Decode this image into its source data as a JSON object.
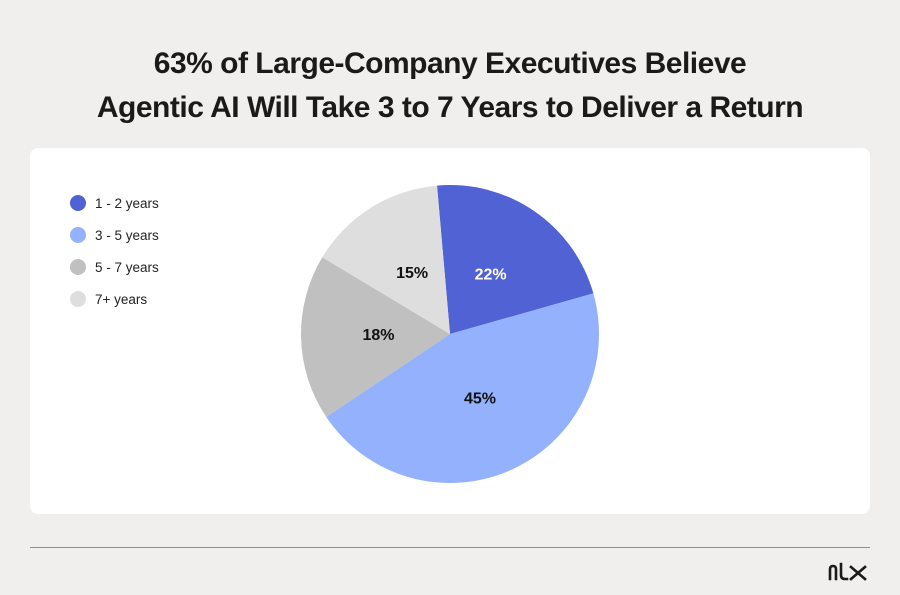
{
  "title": {
    "line1": "63% of Large-Company Executives Believe",
    "line2": "Agentic AI Will Take 3 to 7 Years to Deliver a Return"
  },
  "logo": "nlx",
  "chart_data": {
    "type": "pie",
    "legend_position": "top-left",
    "start_angle_deg": -5,
    "direction": "clockwise",
    "slices": [
      {
        "name": "1 - 2 years",
        "value": 22,
        "label": "22%",
        "color": "#5062d4",
        "label_color": "#ffffff"
      },
      {
        "name": "3 - 5 years",
        "value": 45,
        "label": "45%",
        "color": "#94b1fd",
        "label_color": "#111111"
      },
      {
        "name": "5 - 7 years",
        "value": 18,
        "label": "18%",
        "color": "#c0c0c0",
        "label_color": "#111111"
      },
      {
        "name": "7+ years",
        "value": 15,
        "label": "15%",
        "color": "#dedede",
        "label_color": "#111111"
      }
    ]
  }
}
